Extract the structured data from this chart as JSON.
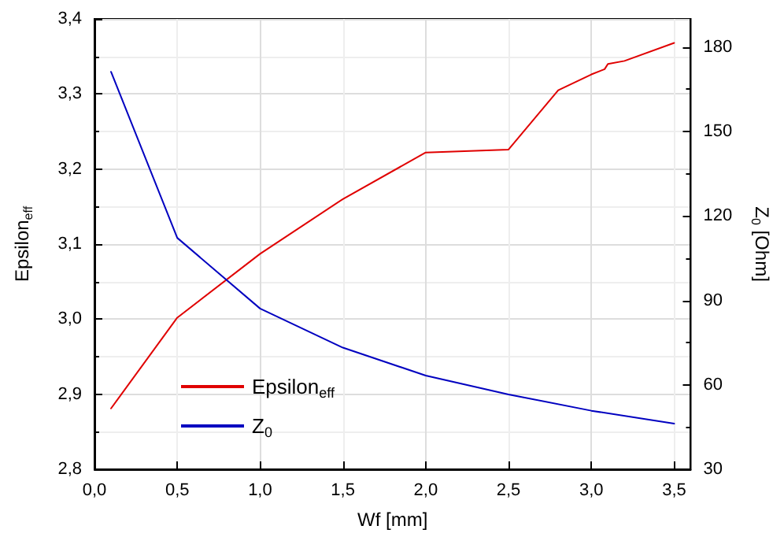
{
  "chart_data": {
    "type": "line",
    "xlabel": "Wf [mm]",
    "ylabel": "Epsilon$_{eff}$",
    "y2label": "Z$_{0}$ [Ohm]",
    "xlim": [
      0,
      3.6
    ],
    "xticks": [
      {
        "value": 0,
        "label": "0,0"
      },
      {
        "value": 0.5,
        "label": "0,5"
      },
      {
        "value": 1,
        "label": "1,0"
      },
      {
        "value": 1.5,
        "label": "1,5"
      },
      {
        "value": 2,
        "label": "2,0"
      },
      {
        "value": 2.5,
        "label": "2,5"
      },
      {
        "value": 3,
        "label": "3,0"
      },
      {
        "value": 3.5,
        "label": "3,5"
      }
    ],
    "ylim": [
      2.8,
      3.4
    ],
    "yticks": [
      {
        "value": 2.8,
        "label": "2,8"
      },
      {
        "value": 2.9,
        "label": "2,9"
      },
      {
        "value": 3.0,
        "label": "3,0"
      },
      {
        "value": 3.1,
        "label": "3,1"
      },
      {
        "value": 3.2,
        "label": "3,2"
      },
      {
        "value": 3.3,
        "label": "3,3"
      },
      {
        "value": 3.4,
        "label": "3,4"
      }
    ],
    "y2lim": [
      30,
      190
    ],
    "y2ticks": [
      30,
      60,
      90,
      120,
      150,
      180
    ],
    "series": [
      {
        "name": "Epsilon$_{eff}$",
        "color": "#e00000",
        "x": [
          0.1,
          0.5,
          1.0,
          1.5,
          2.0,
          2.5,
          2.8,
          3.0,
          3.08,
          3.1,
          3.2,
          3.5
        ],
        "values": [
          2.881,
          3.002,
          3.087,
          3.16,
          3.222,
          3.226,
          3.305,
          3.326,
          3.333,
          3.34,
          3.344,
          3.368
        ]
      },
      {
        "name": "Z$_{0}$",
        "color": "#0000c0",
        "axis": "y2",
        "x": [
          0.1,
          0.5,
          1.0,
          1.5,
          2.0,
          2.5,
          3.0,
          3.5
        ],
        "values": [
          171.2,
          112.2,
          87.1,
          73.2,
          63.3,
          56.6,
          50.8,
          46.2
        ]
      }
    ],
    "grid": true,
    "legend": "bottom left",
    "marker": "none",
    "line_style": "solid"
  }
}
